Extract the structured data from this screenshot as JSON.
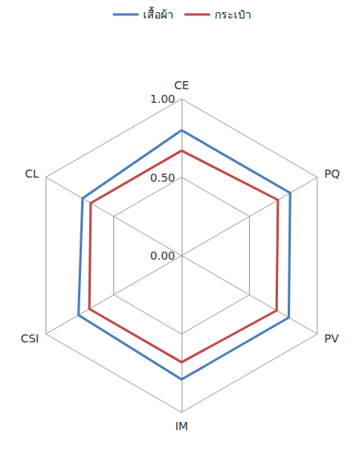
{
  "chart_data": {
    "type": "radar",
    "indicators": [
      "CE",
      "CL",
      "CSI",
      "IM",
      "PV",
      "PQ"
    ],
    "series": [
      {
        "name": "เสื้อผ้า",
        "color": "#4a7ebb",
        "values": [
          0.8,
          0.73,
          0.76,
          0.79,
          0.79,
          0.8
        ]
      },
      {
        "name": "กระเป๋า",
        "color": "#be4b48",
        "values": [
          0.67,
          0.67,
          0.68,
          0.68,
          0.7,
          0.71
        ]
      }
    ],
    "rlim": [
      0,
      1
    ],
    "rticks": [
      {
        "value": 0,
        "label": "0.00"
      },
      {
        "value": 0.5,
        "label": "0.50"
      },
      {
        "value": 1,
        "label": "1.00"
      }
    ],
    "grid": true,
    "legend": "top"
  }
}
